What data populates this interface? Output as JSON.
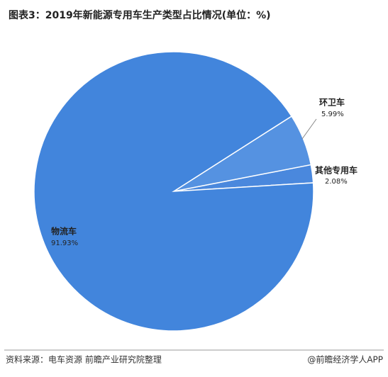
{
  "chart_data": {
    "type": "pie",
    "title": "图表3：2019年新能源专用车生产类型占比情况(单位：%)",
    "categories": [
      "其他专用车",
      "环卫车",
      "物流车"
    ],
    "values": [
      2.08,
      5.99,
      91.93
    ],
    "value_labels": [
      "2.08%",
      "5.99%",
      "91.93%"
    ],
    "colors": [
      "#4a88dd",
      "#5592e1",
      "#4285dc"
    ],
    "source": "资料来源：电车资源 前瞻产业研究院整理",
    "credit": "@前瞻经济学人APP"
  }
}
